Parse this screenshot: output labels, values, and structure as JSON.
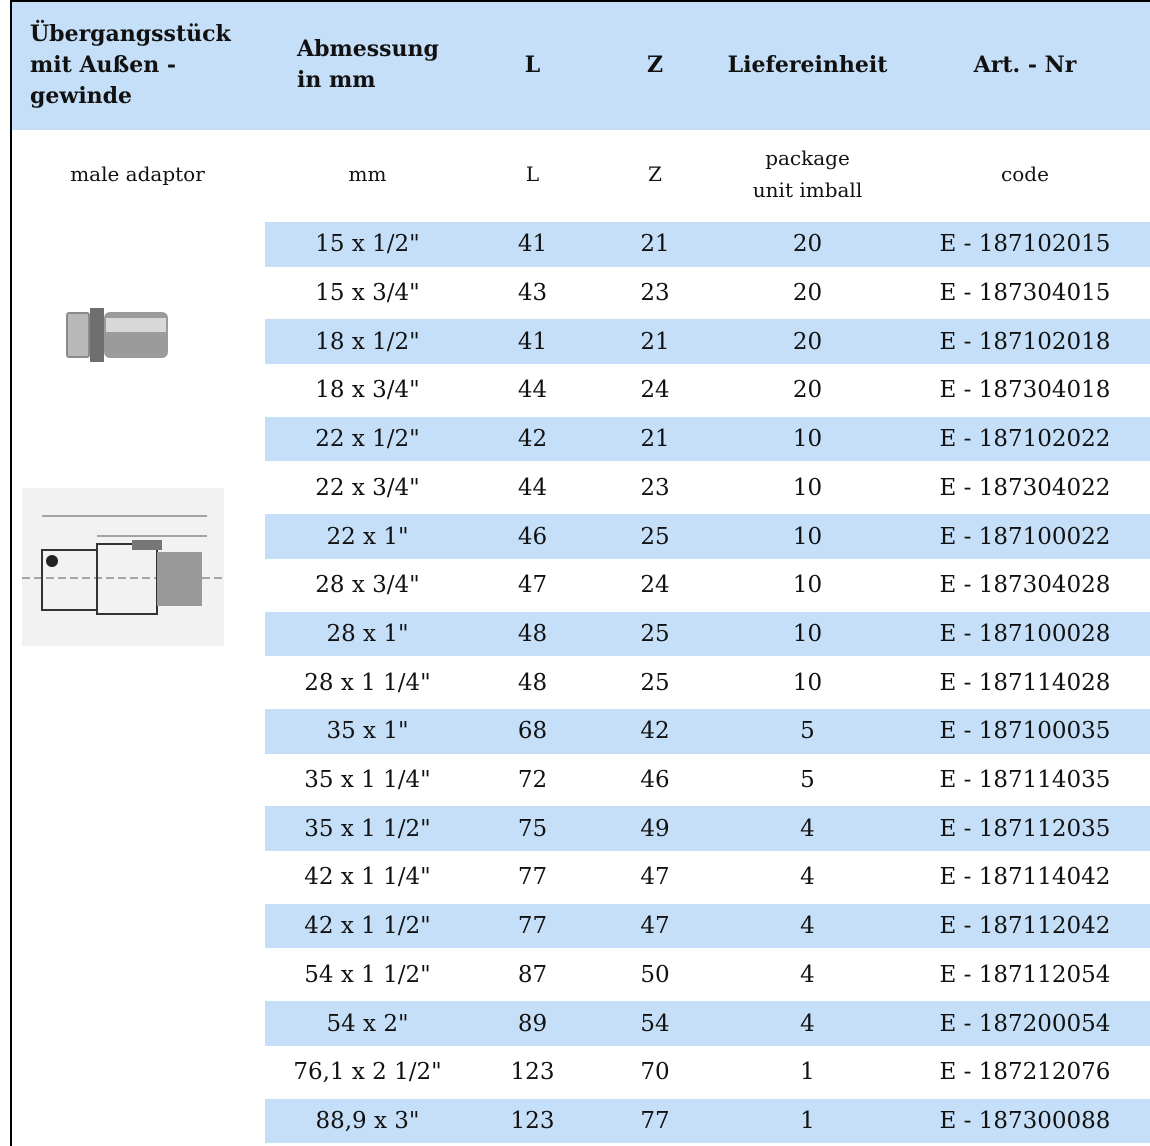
{
  "header": [
    [
      "Übergangsstück",
      "mit Außen -",
      "gewinde"
    ],
    [
      "Abmessung",
      "in mm"
    ],
    [
      "L"
    ],
    [
      "Z"
    ],
    [
      "Liefereinheit"
    ],
    [
      "Art. - Nr"
    ]
  ],
  "subheader": [
    [
      "male adaptor"
    ],
    [
      "mm"
    ],
    [
      "L"
    ],
    [
      "Z"
    ],
    [
      "package",
      "unit imball"
    ],
    [
      "code"
    ]
  ],
  "rows": [
    [
      "15 x 1/2\"",
      "41",
      "21",
      "20",
      "E - 187102015"
    ],
    [
      "15 x 3/4\"",
      "43",
      "23",
      "20",
      "E - 187304015"
    ],
    [
      "18 x 1/2\"",
      "41",
      "21",
      "20",
      "E - 187102018"
    ],
    [
      "18 x 3/4\"",
      "44",
      "24",
      "20",
      "E - 187304018"
    ],
    [
      "22 x 1/2\"",
      "42",
      "21",
      "10",
      "E - 187102022"
    ],
    [
      "22 x 3/4\"",
      "44",
      "23",
      "10",
      "E - 187304022"
    ],
    [
      "22 x 1\"",
      "46",
      "25",
      "10",
      "E - 187100022"
    ],
    [
      "28 x 3/4\"",
      "47",
      "24",
      "10",
      "E - 187304028"
    ],
    [
      "28 x 1\"",
      "48",
      "25",
      "10",
      "E - 187100028"
    ],
    [
      "28 x 1 1/4\"",
      "48",
      "25",
      "10",
      "E - 187114028"
    ],
    [
      "35 x 1\"",
      "68",
      "42",
      "5",
      "E - 187100035"
    ],
    [
      "35 x 1 1/4\"",
      "72",
      "46",
      "5",
      "E - 187114035"
    ],
    [
      "35 x 1 1/2\"",
      "75",
      "49",
      "4",
      "E - 187112035"
    ],
    [
      "42 x 1 1/4\"",
      "77",
      "47",
      "4",
      "E - 187114042"
    ],
    [
      "42 x 1 1/2\"",
      "77",
      "47",
      "4",
      "E - 187112042"
    ],
    [
      "54 x 1 1/2\"",
      "87",
      "50",
      "4",
      "E - 187112054"
    ],
    [
      "54 x 2\"",
      "89",
      "54",
      "4",
      "E - 187200054"
    ],
    [
      "76,1 x 2 1/2\"",
      "123",
      "70",
      "1",
      "E - 187212076"
    ],
    [
      "88,9 x 3\"",
      "123",
      "77",
      "1",
      "E - 187300088"
    ]
  ]
}
